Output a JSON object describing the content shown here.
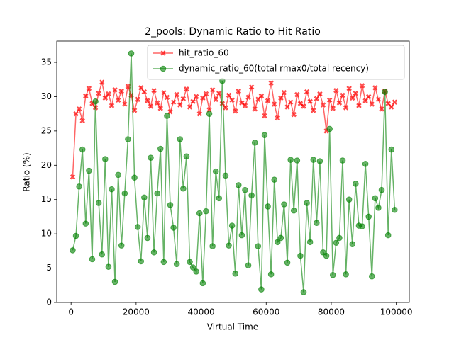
{
  "chart_data": {
    "type": "line",
    "title": "2_pools: Dynamic Ratio to Hit Ratio",
    "x_label": "Virtual Time",
    "y_label": "Ratio (%)",
    "x": [
      500,
      1500,
      2500,
      3500,
      4500,
      5500,
      6500,
      7500,
      8500,
      9500,
      10500,
      11500,
      12500,
      13500,
      14500,
      15500,
      16500,
      17500,
      18500,
      19500,
      20500,
      21500,
      22500,
      23500,
      24500,
      25500,
      26500,
      27500,
      28500,
      29500,
      30500,
      31500,
      32500,
      33500,
      34500,
      35500,
      36500,
      37500,
      38500,
      39500,
      40500,
      41500,
      42500,
      43500,
      44500,
      45500,
      46500,
      47500,
      48500,
      49500,
      50500,
      51500,
      52500,
      53500,
      54500,
      55500,
      56500,
      57500,
      58500,
      59500,
      60500,
      61500,
      62500,
      63500,
      64500,
      65500,
      66500,
      67500,
      68500,
      69500,
      70500,
      71500,
      72500,
      73500,
      74500,
      75500,
      76500,
      77500,
      78500,
      79500,
      80500,
      81500,
      82500,
      83500,
      84500,
      85500,
      86500,
      87500,
      88500,
      89500,
      90500,
      91500,
      92500,
      93500,
      94500,
      95500,
      96500,
      97500,
      98500,
      99500
    ],
    "series": [
      {
        "name": "hit_ratio_60",
        "color": "#ff0000",
        "marker": "x",
        "values": [
          18.3,
          27.5,
          28.2,
          26.5,
          30.1,
          31.2,
          29.0,
          28.4,
          30.5,
          32.1,
          29.8,
          30.4,
          28.7,
          31.0,
          29.5,
          30.8,
          28.9,
          31.5,
          30.2,
          28.0,
          29.6,
          31.3,
          30.7,
          29.4,
          28.6,
          30.9,
          29.1,
          28.3,
          30.6,
          29.9,
          27.8,
          29.2,
          30.3,
          28.8,
          29.7,
          31.1,
          28.5,
          29.3,
          30.0,
          27.5,
          29.8,
          30.4,
          28.1,
          31.0,
          29.6,
          30.5,
          29.0,
          28.4,
          30.2,
          29.5,
          27.9,
          30.8,
          29.1,
          28.7,
          29.9,
          31.4,
          28.2,
          29.6,
          30.1,
          27.2,
          29.4,
          32.0,
          28.9,
          26.9,
          29.8,
          30.6,
          28.5,
          29.2,
          27.4,
          30.3,
          29.0,
          28.6,
          30.7,
          29.3,
          28.0,
          29.7,
          30.4,
          28.8,
          25.0,
          29.5,
          28.3,
          30.9,
          29.1,
          30.2,
          28.4,
          31.2,
          29.8,
          30.5,
          28.7,
          31.6,
          29.4,
          30.0,
          28.9,
          31.3,
          29.6,
          28.2,
          30.8,
          29.0,
          28.5,
          29.2
        ]
      },
      {
        "name": "dynamic_ratio_60(total rmax0/total recency)",
        "color": "#008000",
        "marker": "o",
        "values": [
          7.6,
          9.7,
          16.9,
          22.3,
          11.5,
          19.2,
          6.3,
          29.3,
          14.5,
          7.0,
          20.9,
          5.2,
          16.5,
          3.0,
          18.6,
          8.3,
          15.9,
          23.8,
          36.3,
          18.2,
          11.0,
          6.0,
          15.3,
          9.4,
          21.1,
          7.3,
          15.9,
          22.4,
          5.9,
          27.2,
          14.2,
          10.9,
          5.6,
          23.8,
          16.6,
          21.3,
          5.9,
          5.1,
          4.5,
          13.0,
          2.8,
          13.3,
          27.5,
          8.2,
          19.1,
          15.2,
          32.3,
          18.5,
          8.3,
          11.2,
          4.2,
          17.1,
          9.8,
          16.4,
          5.4,
          15.6,
          23.3,
          8.2,
          1.9,
          24.4,
          14.0,
          4.1,
          17.9,
          8.8,
          9.4,
          14.3,
          5.8,
          20.8,
          13.4,
          20.7,
          6.8,
          1.5,
          14.5,
          8.8,
          20.8,
          11.6,
          20.6,
          7.3,
          6.8,
          25.3,
          4.0,
          8.7,
          9.4,
          20.7,
          4.1,
          15.0,
          8.5,
          17.3,
          11.2,
          11.1,
          20.2,
          12.5,
          3.8,
          15.2,
          13.8,
          16.4,
          30.7,
          9.8,
          22.3,
          13.5
        ]
      }
    ],
    "xlim": [
      -4400,
      104000
    ],
    "ylim": [
      0,
      38.1
    ],
    "xticks": [
      0,
      20000,
      40000,
      60000,
      80000,
      100000
    ],
    "yticks": [
      0,
      5,
      10,
      15,
      20,
      25,
      30,
      35
    ],
    "legend": "upper right"
  }
}
